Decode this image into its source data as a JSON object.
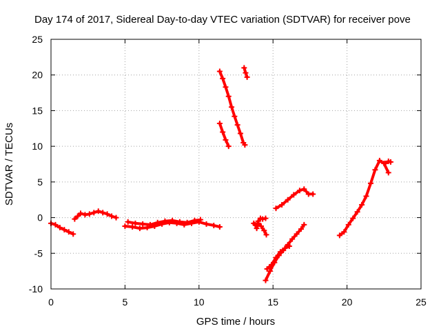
{
  "chart_data": {
    "type": "scatter",
    "title": "Day 174 of 2017, Sidereal Day-to-day VTEC variation (SDTVAR) for receiver pove",
    "xlabel": "GPS time / hours",
    "ylabel": "SDTVAR / TECUs",
    "xlim": [
      0,
      25
    ],
    "ylim": [
      -10,
      25
    ],
    "xticks": [
      0,
      5,
      10,
      15,
      20,
      25
    ],
    "yticks": [
      -10,
      -5,
      0,
      5,
      10,
      15,
      20,
      25
    ],
    "grid": true,
    "marker": "plus",
    "color": "#ff0000",
    "series": [
      {
        "x": [
          0.0,
          0.3,
          0.6,
          0.9,
          1.2,
          1.5
        ],
        "y": [
          -0.8,
          -1.0,
          -1.4,
          -1.7,
          -2.0,
          -2.3
        ]
      },
      {
        "x": [
          1.6,
          1.8,
          2.0,
          2.3,
          2.6,
          2.9,
          3.2,
          3.5,
          3.8,
          4.1,
          4.4
        ],
        "y": [
          -0.2,
          0.2,
          0.6,
          0.4,
          0.5,
          0.7,
          0.9,
          0.7,
          0.5,
          0.2,
          0.0
        ]
      },
      {
        "x": [
          5.0,
          5.5,
          6.0,
          6.5,
          7.0,
          7.5,
          8.0,
          8.5,
          9.0,
          9.5,
          10.0,
          10.5,
          11.0,
          11.4
        ],
        "y": [
          -1.2,
          -1.3,
          -1.5,
          -1.4,
          -1.2,
          -0.9,
          -0.7,
          -0.8,
          -1.0,
          -0.8,
          -0.6,
          -0.9,
          -1.1,
          -1.3
        ]
      },
      {
        "x": [
          5.2,
          5.7,
          6.2,
          6.7,
          7.2,
          7.7,
          8.2,
          8.7,
          9.2,
          9.7,
          10.1
        ],
        "y": [
          -0.6,
          -0.8,
          -0.9,
          -1.0,
          -0.7,
          -0.5,
          -0.4,
          -0.6,
          -0.7,
          -0.4,
          -0.3
        ]
      },
      {
        "x": [
          11.4,
          11.6,
          11.8,
          12.0,
          12.2,
          12.4,
          12.6,
          12.8,
          13.0,
          13.1
        ],
        "y": [
          20.5,
          19.5,
          18.3,
          17.0,
          15.5,
          14.2,
          13.0,
          11.8,
          10.5,
          10.2
        ]
      },
      {
        "x": [
          11.4,
          11.6,
          11.8,
          12.0
        ],
        "y": [
          13.2,
          12.0,
          10.9,
          10.0
        ]
      },
      {
        "x": [
          13.05,
          13.15,
          13.25
        ],
        "y": [
          21.0,
          20.3,
          19.7
        ]
      },
      {
        "x": [
          13.7,
          13.8,
          13.9,
          14.0,
          14.15,
          14.3,
          14.5
        ],
        "y": [
          -0.8,
          -1.0,
          -1.5,
          -0.5,
          -0.1,
          -0.2,
          -0.1
        ]
      },
      {
        "x": [
          14.0,
          14.2,
          14.4,
          14.55
        ],
        "y": [
          -0.8,
          -1.2,
          -1.8,
          -2.4
        ]
      },
      {
        "x": [
          14.5,
          14.8,
          15.1,
          15.4,
          15.7,
          16.0,
          16.3,
          16.6,
          16.9,
          17.1
        ],
        "y": [
          -8.8,
          -7.5,
          -6.3,
          -5.3,
          -4.6,
          -3.8,
          -3.0,
          -2.3,
          -1.6,
          -1.0
        ]
      },
      {
        "x": [
          14.6,
          14.9,
          15.2,
          15.5,
          15.8,
          16.1
        ],
        "y": [
          -7.2,
          -6.6,
          -5.6,
          -4.8,
          -4.3,
          -4.0
        ]
      },
      {
        "x": [
          15.2,
          15.6,
          16.0,
          16.4,
          16.8,
          17.1,
          17.4,
          17.7
        ],
        "y": [
          1.3,
          1.8,
          2.5,
          3.2,
          3.8,
          4.0,
          3.3,
          3.3
        ]
      },
      {
        "x": [
          19.5,
          19.8,
          20.1,
          20.4,
          20.7,
          21.0,
          21.3,
          21.6,
          21.9,
          22.2,
          22.5,
          22.8
        ],
        "y": [
          -2.5,
          -2.0,
          -1.0,
          -0.1,
          0.8,
          1.8,
          3.0,
          4.8,
          6.7,
          8.0,
          7.6,
          6.3
        ]
      },
      {
        "x": [
          22.6,
          22.8,
          22.95
        ],
        "y": [
          7.6,
          7.9,
          7.8
        ]
      }
    ]
  }
}
